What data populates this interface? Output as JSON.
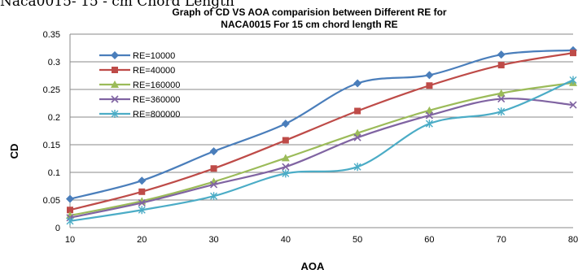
{
  "page_header": "Naca0015- 15 - cm Chord Length",
  "chart_data": {
    "type": "line",
    "title": "Graph of CD VS AOA comparision between  Different RE for",
    "subtitle": "NACA0015 For 15 cm chord length  RE",
    "xlabel": "AOA",
    "ylabel": "CD",
    "x": [
      10,
      20,
      30,
      40,
      50,
      60,
      70,
      80
    ],
    "xlim": [
      10,
      80
    ],
    "ylim": [
      0,
      0.35
    ],
    "yticks": [
      "0",
      "0.05",
      "0.1",
      "0.15",
      "0.2",
      "0.25",
      "0.3",
      "0.35"
    ],
    "xticks": [
      "10",
      "20",
      "30",
      "40",
      "50",
      "60",
      "70",
      "80"
    ],
    "grid": "horizontal",
    "legend": "top-left",
    "series": [
      {
        "name": "RE=10000",
        "color": "#4a7ebb",
        "marker": "diamond",
        "values": [
          0.052,
          0.085,
          0.138,
          0.188,
          0.261,
          0.276,
          0.313,
          0.321
        ]
      },
      {
        "name": "RE=40000",
        "color": "#be4b48",
        "marker": "square",
        "values": [
          0.032,
          0.065,
          0.107,
          0.158,
          0.211,
          0.257,
          0.294,
          0.316
        ]
      },
      {
        "name": "RE=160000",
        "color": "#9bbb59",
        "marker": "triangle",
        "values": [
          0.022,
          0.048,
          0.083,
          0.126,
          0.171,
          0.212,
          0.243,
          0.262
        ]
      },
      {
        "name": "RE=360000",
        "color": "#8064a2",
        "marker": "x",
        "values": [
          0.018,
          0.045,
          0.078,
          0.11,
          0.163,
          0.203,
          0.233,
          0.222
        ]
      },
      {
        "name": "RE=800000",
        "color": "#4bacc6",
        "marker": "star",
        "values": [
          0.012,
          0.032,
          0.057,
          0.098,
          0.11,
          0.188,
          0.21,
          0.267
        ]
      }
    ]
  }
}
